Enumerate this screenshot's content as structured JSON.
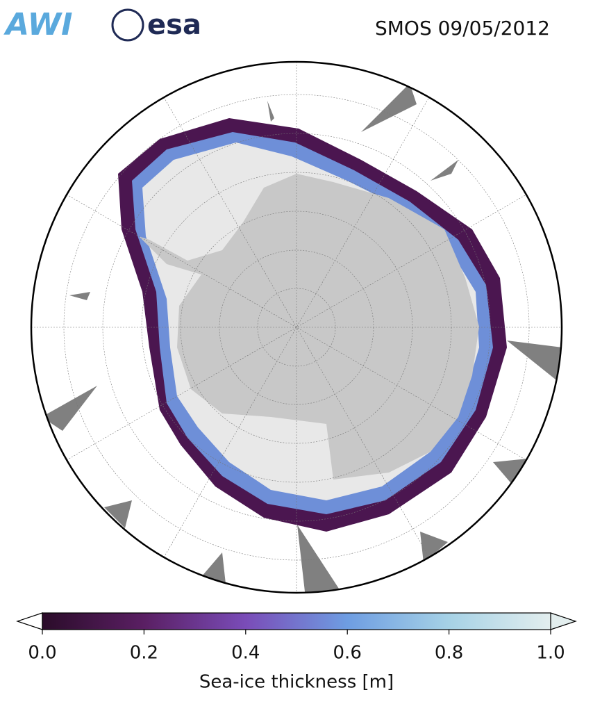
{
  "header": {
    "logo_left": "AWI",
    "logo_right": "esa",
    "title": "SMOS 09/05/2012"
  },
  "colorbar": {
    "label": "Sea-ice thickness [m]",
    "lim": [
      0,
      1
    ],
    "ticks": [
      {
        "value": 0,
        "label": "0.0"
      },
      {
        "value": 0.2,
        "label": "0.2"
      },
      {
        "value": 0.4,
        "label": "0.4"
      },
      {
        "value": 0.6,
        "label": "0.6"
      },
      {
        "value": 0.8,
        "label": "0.8"
      },
      {
        "value": 1,
        "label": "1.0"
      }
    ]
  }
}
